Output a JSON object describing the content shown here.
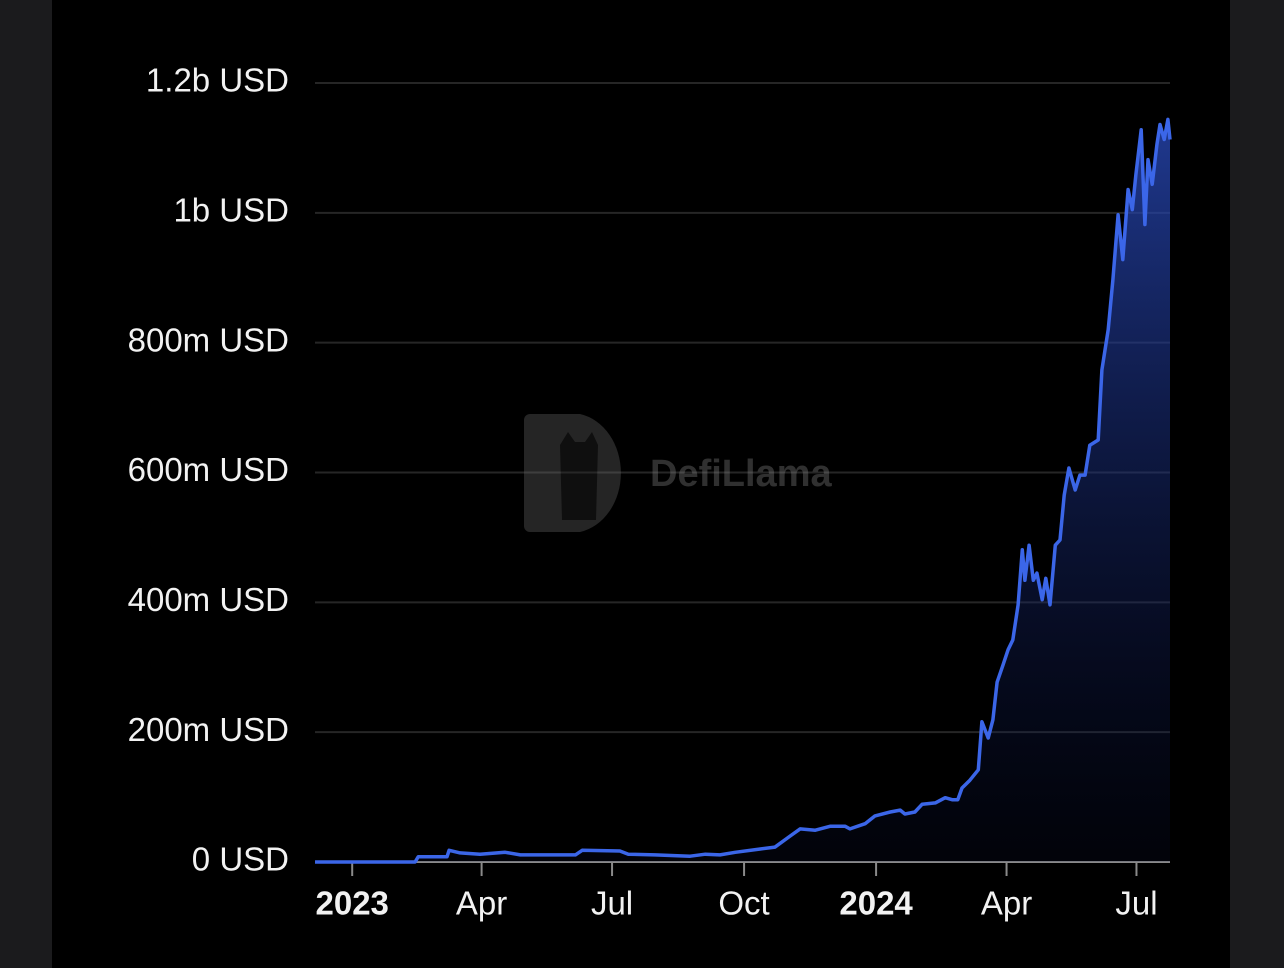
{
  "chart_data": {
    "type": "area",
    "watermark": "DefiLlama",
    "xlim": [
      2022.929,
      2024.561
    ],
    "xticks": [
      {
        "value": 2023,
        "label": "2023"
      },
      {
        "value": 2023.247,
        "label": "Apr"
      },
      {
        "value": 2023.496,
        "label": "Jul"
      },
      {
        "value": 2023.748,
        "label": "Oct"
      },
      {
        "value": 2024,
        "label": "2024"
      },
      {
        "value": 2024.249,
        "label": "Apr"
      },
      {
        "value": 2024.497,
        "label": "Jul"
      }
    ],
    "ylim": [
      0,
      1200000000
    ],
    "yticks": [
      {
        "value": 0,
        "label": "0 USD"
      },
      {
        "value": 200000000,
        "label": "200m USD"
      },
      {
        "value": 400000000,
        "label": "400m USD"
      },
      {
        "value": 600000000,
        "label": "600m USD"
      },
      {
        "value": 800000000,
        "label": "800m USD"
      },
      {
        "value": 1000000000,
        "label": "1b USD"
      },
      {
        "value": 1200000000,
        "label": "1.2b USD"
      }
    ],
    "grid": true,
    "series": [
      {
        "color": "#3b66e8",
        "x": [
          2022.929,
          2023.12,
          2023.126,
          2023.181,
          2023.185,
          2023.206,
          2023.244,
          2023.292,
          2023.321,
          2023.426,
          2023.439,
          2023.511,
          2023.527,
          2023.578,
          2023.645,
          2023.674,
          2023.702,
          2023.731,
          2023.779,
          2023.807,
          2023.836,
          2023.855,
          2023.884,
          2023.912,
          2023.941,
          2023.95,
          2023.979,
          2023.998,
          2024.027,
          2024.046,
          2024.055,
          2024.074,
          2024.088,
          2024.113,
          2024.132,
          2024.145,
          2024.156,
          2024.164,
          2024.179,
          2024.195,
          2024.202,
          2024.214,
          2024.223,
          2024.231,
          2024.242,
          2024.252,
          2024.261,
          2024.271,
          2024.279,
          2024.284,
          2024.292,
          2024.3,
          2024.307,
          2024.317,
          2024.324,
          2024.332,
          2024.342,
          2024.351,
          2024.359,
          2024.368,
          2024.38,
          2024.389,
          2024.399,
          2024.408,
          2024.424,
          2024.431,
          2024.443,
          2024.452,
          2024.462,
          2024.471,
          2024.481,
          2024.489,
          2024.496,
          2024.506,
          2024.513,
          2024.519,
          2024.527,
          2024.536,
          2024.542,
          2024.55,
          2024.557,
          2024.561
        ],
        "values": [
          0,
          0,
          8000000,
          8000000,
          18000000,
          14000000,
          12000000,
          15000000,
          11000000,
          11000000,
          18000000,
          17000000,
          12000000,
          11000000,
          9000000,
          12000000,
          11000000,
          15000000,
          20000000,
          23000000,
          40000000,
          51000000,
          49000000,
          55000000,
          55000000,
          51000000,
          59000000,
          71000000,
          77000000,
          80000000,
          74000000,
          77000000,
          89000000,
          91000000,
          99000000,
          96000000,
          96000000,
          114000000,
          126000000,
          142000000,
          216000000,
          191000000,
          219000000,
          277000000,
          303000000,
          327000000,
          342000000,
          396000000,
          481000000,
          434000000,
          488000000,
          434000000,
          445000000,
          404000000,
          437000000,
          396000000,
          488000000,
          496000000,
          565000000,
          607000000,
          573000000,
          596000000,
          596000000,
          642000000,
          650000000,
          758000000,
          820000000,
          897000000,
          997000000,
          928000000,
          1036000000,
          1005000000,
          1059000000,
          1128000000,
          982000000,
          1082000000,
          1044000000,
          1105000000,
          1136000000,
          1113000000,
          1144000000,
          1113000000
        ]
      }
    ]
  }
}
